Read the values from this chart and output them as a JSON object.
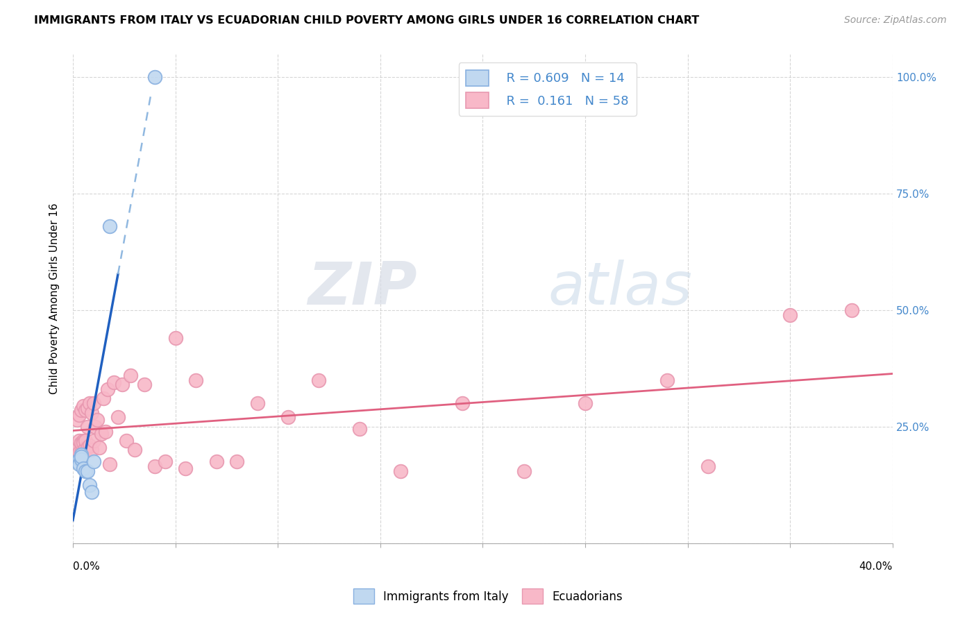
{
  "title": "IMMIGRANTS FROM ITALY VS ECUADORIAN CHILD POVERTY AMONG GIRLS UNDER 16 CORRELATION CHART",
  "source": "Source: ZipAtlas.com",
  "ylabel": "Child Poverty Among Girls Under 16",
  "xlim": [
    0.0,
    0.4
  ],
  "ylim": [
    0.0,
    1.05
  ],
  "color_italy_face": "#c0d8f0",
  "color_italy_edge": "#88b0e0",
  "color_ecuador_face": "#f8b8c8",
  "color_ecuador_edge": "#e898b0",
  "trendline_italy_solid_color": "#2060c0",
  "trendline_italy_dash_color": "#90b8e0",
  "trendline_ecuador_color": "#e06080",
  "italy_points_x": [
    0.002,
    0.003,
    0.003,
    0.004,
    0.004,
    0.004,
    0.005,
    0.006,
    0.007,
    0.008,
    0.009,
    0.01,
    0.018,
    0.04
  ],
  "italy_points_y": [
    0.175,
    0.18,
    0.17,
    0.19,
    0.18,
    0.185,
    0.16,
    0.155,
    0.155,
    0.125,
    0.11,
    0.175,
    0.68,
    1.0
  ],
  "ecuador_points_x": [
    0.001,
    0.002,
    0.002,
    0.003,
    0.003,
    0.003,
    0.004,
    0.004,
    0.004,
    0.005,
    0.005,
    0.005,
    0.006,
    0.006,
    0.006,
    0.007,
    0.007,
    0.007,
    0.008,
    0.008,
    0.009,
    0.009,
    0.01,
    0.01,
    0.011,
    0.012,
    0.013,
    0.014,
    0.015,
    0.016,
    0.017,
    0.018,
    0.02,
    0.022,
    0.024,
    0.026,
    0.028,
    0.03,
    0.035,
    0.04,
    0.045,
    0.05,
    0.055,
    0.06,
    0.07,
    0.08,
    0.09,
    0.105,
    0.12,
    0.14,
    0.16,
    0.19,
    0.22,
    0.25,
    0.29,
    0.31,
    0.35,
    0.38
  ],
  "ecuador_points_y": [
    0.2,
    0.21,
    0.265,
    0.195,
    0.275,
    0.22,
    0.195,
    0.285,
    0.215,
    0.22,
    0.295,
    0.215,
    0.285,
    0.205,
    0.22,
    0.29,
    0.205,
    0.25,
    0.21,
    0.3,
    0.2,
    0.28,
    0.22,
    0.3,
    0.25,
    0.265,
    0.205,
    0.235,
    0.31,
    0.24,
    0.33,
    0.17,
    0.345,
    0.27,
    0.34,
    0.22,
    0.36,
    0.2,
    0.34,
    0.165,
    0.175,
    0.44,
    0.16,
    0.35,
    0.175,
    0.175,
    0.3,
    0.27,
    0.35,
    0.245,
    0.155,
    0.3,
    0.155,
    0.3,
    0.35,
    0.165,
    0.49,
    0.5
  ],
  "watermark_zip": "ZIP",
  "watermark_atlas": "atlas",
  "legend_label1": "Immigrants from Italy",
  "legend_label2": "Ecuadorians"
}
